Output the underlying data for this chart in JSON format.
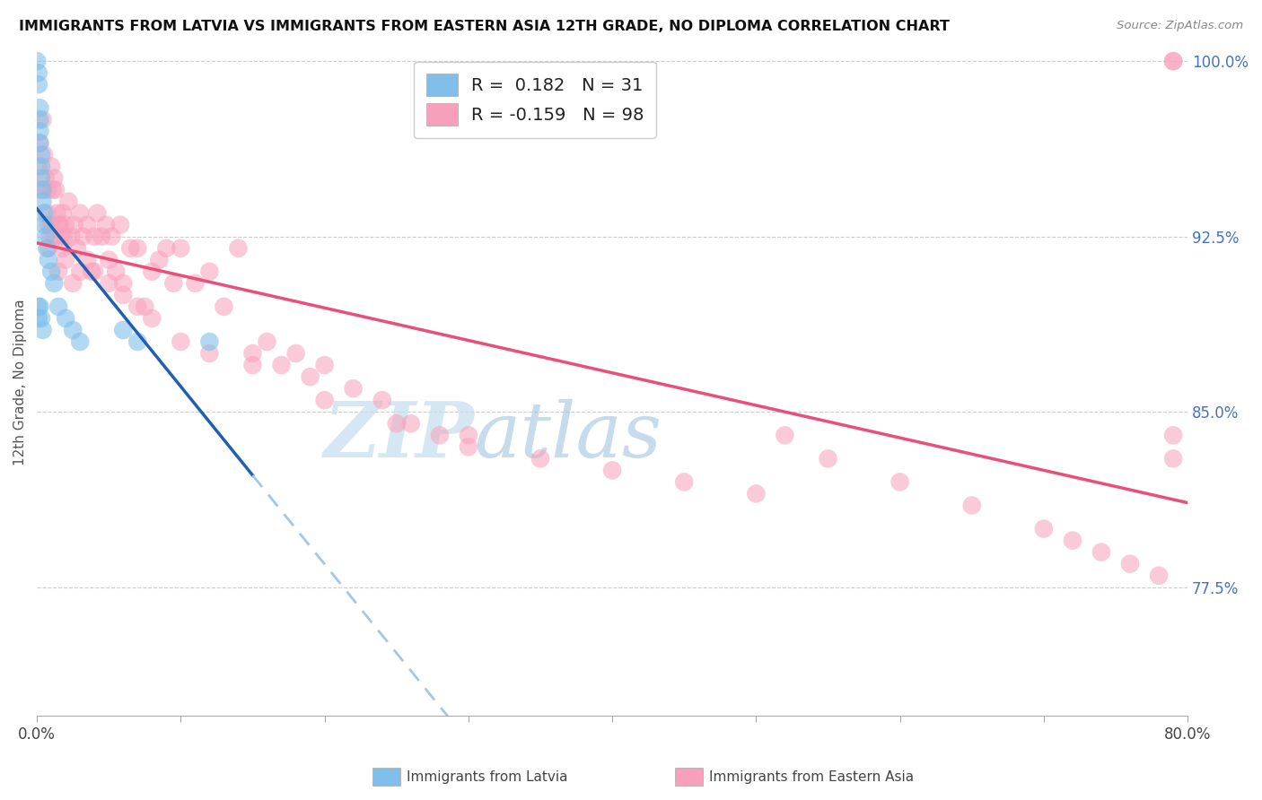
{
  "title": "IMMIGRANTS FROM LATVIA VS IMMIGRANTS FROM EASTERN ASIA 12TH GRADE, NO DIPLOMA CORRELATION CHART",
  "source": "Source: ZipAtlas.com",
  "ylabel": "12th Grade, No Diploma",
  "watermark_zip": "ZIP",
  "watermark_atlas": "atlas",
  "x_min": 0.0,
  "x_max": 0.8,
  "y_min": 0.72,
  "y_max": 1.005,
  "y_ticks": [
    0.775,
    0.85,
    0.925,
    1.0
  ],
  "y_tick_labels": [
    "77.5%",
    "85.0%",
    "92.5%",
    "100.0%"
  ],
  "R_latvia": 0.182,
  "N_latvia": 31,
  "R_eastern_asia": -0.159,
  "N_eastern_asia": 98,
  "blue_color": "#7fbfea",
  "pink_color": "#f8a0bb",
  "blue_line_color": "#2060b0",
  "pink_line_color": "#e8507a",
  "blue_dash_color": "#a0c8e8",
  "latvia_x": [
    0.0,
    0.001,
    0.001,
    0.002,
    0.002,
    0.002,
    0.002,
    0.003,
    0.003,
    0.003,
    0.004,
    0.004,
    0.005,
    0.005,
    0.006,
    0.007,
    0.008,
    0.01,
    0.012,
    0.015,
    0.02,
    0.025,
    0.03,
    0.001,
    0.001,
    0.002,
    0.003,
    0.004,
    0.06,
    0.07,
    0.12
  ],
  "latvia_y": [
    1.0,
    0.995,
    0.99,
    0.98,
    0.975,
    0.97,
    0.965,
    0.96,
    0.955,
    0.95,
    0.945,
    0.94,
    0.935,
    0.93,
    0.925,
    0.92,
    0.915,
    0.91,
    0.905,
    0.895,
    0.89,
    0.885,
    0.88,
    0.895,
    0.89,
    0.895,
    0.89,
    0.885,
    0.885,
    0.88,
    0.88
  ],
  "ea_x": [
    0.001,
    0.002,
    0.003,
    0.004,
    0.005,
    0.006,
    0.007,
    0.008,
    0.009,
    0.01,
    0.011,
    0.012,
    0.013,
    0.014,
    0.015,
    0.016,
    0.017,
    0.018,
    0.019,
    0.02,
    0.022,
    0.024,
    0.026,
    0.028,
    0.03,
    0.032,
    0.035,
    0.038,
    0.04,
    0.042,
    0.045,
    0.048,
    0.05,
    0.052,
    0.055,
    0.058,
    0.06,
    0.065,
    0.07,
    0.075,
    0.08,
    0.085,
    0.09,
    0.095,
    0.1,
    0.11,
    0.12,
    0.13,
    0.14,
    0.15,
    0.16,
    0.17,
    0.18,
    0.19,
    0.2,
    0.22,
    0.24,
    0.26,
    0.28,
    0.3,
    0.007,
    0.008,
    0.01,
    0.012,
    0.015,
    0.018,
    0.02,
    0.025,
    0.03,
    0.035,
    0.04,
    0.05,
    0.06,
    0.07,
    0.08,
    0.1,
    0.12,
    0.15,
    0.2,
    0.25,
    0.3,
    0.35,
    0.4,
    0.45,
    0.5,
    0.52,
    0.55,
    0.6,
    0.65,
    0.7,
    0.72,
    0.74,
    0.76,
    0.78,
    0.79,
    0.79,
    0.79,
    0.79
  ],
  "ea_y": [
    0.955,
    0.965,
    0.945,
    0.975,
    0.96,
    0.95,
    0.945,
    0.93,
    0.925,
    0.955,
    0.945,
    0.95,
    0.945,
    0.935,
    0.93,
    0.93,
    0.925,
    0.935,
    0.925,
    0.93,
    0.94,
    0.925,
    0.93,
    0.92,
    0.935,
    0.925,
    0.93,
    0.91,
    0.925,
    0.935,
    0.925,
    0.93,
    0.915,
    0.925,
    0.91,
    0.93,
    0.905,
    0.92,
    0.92,
    0.895,
    0.91,
    0.915,
    0.92,
    0.905,
    0.92,
    0.905,
    0.91,
    0.895,
    0.92,
    0.875,
    0.88,
    0.87,
    0.875,
    0.865,
    0.87,
    0.86,
    0.855,
    0.845,
    0.84,
    0.84,
    0.935,
    0.92,
    0.93,
    0.925,
    0.91,
    0.92,
    0.915,
    0.905,
    0.91,
    0.915,
    0.91,
    0.905,
    0.9,
    0.895,
    0.89,
    0.88,
    0.875,
    0.87,
    0.855,
    0.845,
    0.835,
    0.83,
    0.825,
    0.82,
    0.815,
    0.84,
    0.83,
    0.82,
    0.81,
    0.8,
    0.795,
    0.79,
    0.785,
    0.78,
    1.0,
    1.0,
    0.84,
    0.83
  ],
  "legend_R_latvia": "R =  0.182",
  "legend_N_latvia": "N =  31",
  "legend_R_ea": "R = -0.159",
  "legend_N_ea": "N = 98"
}
